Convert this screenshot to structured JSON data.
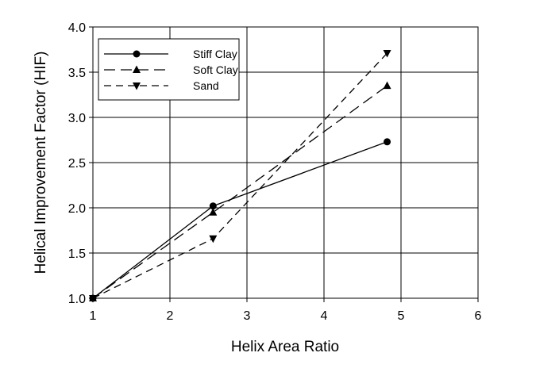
{
  "chart_data": {
    "type": "line",
    "title": "",
    "xlabel": "Helix Area Ratio",
    "ylabel": "Helical Improvement Factor (HIF)",
    "xlim": [
      1,
      6
    ],
    "ylim": [
      1.0,
      4.0
    ],
    "xticks": [
      "1",
      "2",
      "3",
      "4",
      "5",
      "6"
    ],
    "yticks": [
      "1.0",
      "1.5",
      "2.0",
      "2.5",
      "3.0",
      "3.5",
      "4.0"
    ],
    "grid": true,
    "legend_position": "top-left",
    "colors": {
      "line": "#000000",
      "background": "#ffffff"
    },
    "series": [
      {
        "name": "Stiff Clay",
        "line_style": "solid",
        "marker": "circle",
        "x": [
          1.0,
          2.56,
          4.82
        ],
        "y": [
          1.0,
          2.02,
          2.73
        ]
      },
      {
        "name": "Soft Clay",
        "line_style": "long-dash",
        "marker": "triangle-up",
        "x": [
          1.0,
          2.56,
          4.82
        ],
        "y": [
          1.0,
          1.95,
          3.35
        ]
      },
      {
        "name": "Sand",
        "line_style": "dash",
        "marker": "triangle-down",
        "x": [
          1.0,
          2.56,
          4.82
        ],
        "y": [
          1.0,
          1.66,
          3.71
        ]
      }
    ]
  }
}
